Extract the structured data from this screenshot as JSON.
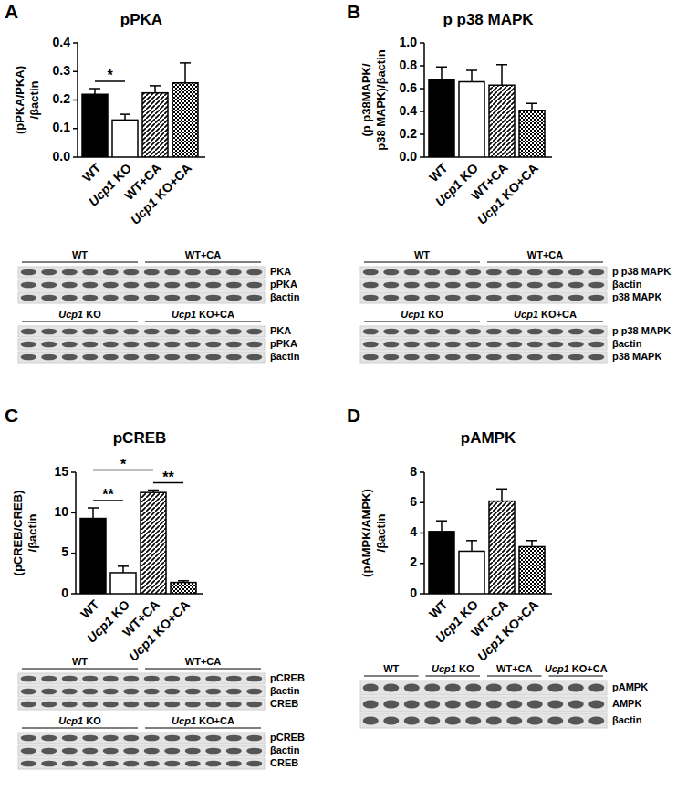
{
  "chart_data": [
    {
      "type": "bar",
      "panel": "A",
      "title": "pPKA",
      "y_label": [
        "(pPKA/PKA)",
        "/βactin"
      ],
      "categories": [
        "WT",
        "Ucp1 KO",
        "WT+CA",
        "Ucp1 KO+CA"
      ],
      "values": [
        0.22,
        0.13,
        0.225,
        0.26
      ],
      "errors": [
        0.02,
        0.02,
        0.025,
        0.07
      ],
      "colors": [
        "#000000",
        "#ffffff",
        "#000000",
        "#000000"
      ],
      "ylim": [
        0,
        0.4
      ],
      "yticks": [
        {
          "value": 0,
          "label": "0.0"
        },
        0.1,
        0.2,
        0.3,
        0.4
      ],
      "grid": false,
      "significance": [
        {
          "between": [
            "WT",
            "Ucp1 KO"
          ],
          "label": "*"
        }
      ],
      "blots": [
        {
          "groups": [
            "WT",
            "WT+CA"
          ],
          "rows": [
            "PKA",
            "pPKA",
            "βactin"
          ]
        },
        {
          "groups": [
            "Ucp1 KO",
            "Ucp1 KO+CA"
          ],
          "rows": [
            "PKA",
            "pPKA",
            "βactin"
          ]
        }
      ]
    },
    {
      "type": "bar",
      "panel": "B",
      "title": "p p38 MAPK",
      "y_label": [
        "(p p38MAPK/",
        "p38 MAPK)/βactin"
      ],
      "categories": [
        "WT",
        "Ucp1 KO",
        "WT+CA",
        "Ucp1 KO+CA"
      ],
      "values": [
        0.68,
        0.66,
        0.63,
        0.41
      ],
      "errors": [
        0.11,
        0.1,
        0.18,
        0.06
      ],
      "colors": [
        "#000000",
        "#ffffff",
        "#000000",
        "#000000"
      ],
      "ylim": [
        0,
        1
      ],
      "yticks": [
        {
          "value": 0,
          "label": "0.0"
        },
        0.2,
        0.4,
        0.6,
        0.8,
        {
          "value": 1,
          "label": "1.0"
        }
      ],
      "grid": false,
      "significance": [],
      "blots": [
        {
          "groups": [
            "WT",
            "WT+CA"
          ],
          "rows": [
            "p p38 MAPK",
            "βactin",
            "p38 MAPK"
          ]
        },
        {
          "groups": [
            "Ucp1 KO",
            "Ucp1 KO+CA"
          ],
          "rows": [
            "p p38 MAPK",
            "βactin",
            "p38 MAPK"
          ]
        }
      ]
    },
    {
      "type": "bar",
      "panel": "C",
      "title": "pCREB",
      "y_label": [
        "(pCREB/CREB)",
        "/βactin"
      ],
      "categories": [
        "WT",
        "Ucp1 KO",
        "WT+CA",
        "Ucp1 KO+CA"
      ],
      "values": [
        9.3,
        2.6,
        12.5,
        1.4
      ],
      "errors": [
        1.3,
        0.8,
        0.3,
        0.2
      ],
      "colors": [
        "#000000",
        "#ffffff",
        "#000000",
        "#000000"
      ],
      "ylim": [
        0,
        15
      ],
      "yticks": [
        0,
        5,
        10,
        15
      ],
      "grid": false,
      "significance": [
        {
          "between": [
            "WT",
            "Ucp1 KO"
          ],
          "label": "**"
        },
        {
          "between": [
            "WT",
            "WT+CA"
          ],
          "label": "*"
        },
        {
          "between": [
            "WT+CA",
            "Ucp1 KO+CA"
          ],
          "label": "**"
        }
      ],
      "blots": [
        {
          "groups": [
            "WT",
            "WT+CA"
          ],
          "rows": [
            "pCREB",
            "βactin",
            "CREB"
          ]
        },
        {
          "groups": [
            "Ucp1 KO",
            "Ucp1 KO+CA"
          ],
          "rows": [
            "pCREB",
            "βactin",
            "CREB"
          ]
        }
      ]
    },
    {
      "type": "bar",
      "panel": "D",
      "title": "pAMPK",
      "y_label": [
        "(pAMPK/AMPK)",
        "/βactin"
      ],
      "categories": [
        "WT",
        "Ucp1 KO",
        "WT+CA",
        "Ucp1 KO+CA"
      ],
      "values": [
        4.1,
        2.8,
        6.1,
        3.1
      ],
      "errors": [
        0.7,
        0.7,
        0.8,
        0.4
      ],
      "colors": [
        "#000000",
        "#ffffff",
        "#000000",
        "#000000"
      ],
      "ylim": [
        0,
        8
      ],
      "yticks": [
        0,
        2,
        4,
        6,
        8
      ],
      "grid": false,
      "significance": [],
      "blots": [
        {
          "groups": [
            "WT",
            "Ucp1 KO",
            "WT+CA",
            "Ucp1 KO+CA"
          ],
          "rows": [
            "pAMPK",
            "AMPK",
            "βactin"
          ]
        }
      ]
    }
  ]
}
